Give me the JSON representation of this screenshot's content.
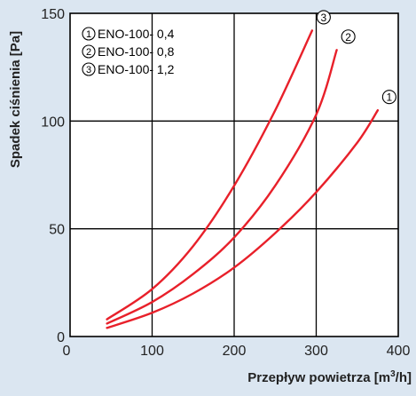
{
  "chart_data": {
    "type": "line",
    "title": "",
    "xlabel_main": "Przepływ  powietrza [m",
    "xlabel_sup": "3",
    "xlabel_tail": "/h]",
    "ylabel": "Spadek  ciśnienia [Pa]",
    "xlim": [
      0,
      400
    ],
    "ylim": [
      0,
      150
    ],
    "x_ticks": [
      "0",
      "100",
      "200",
      "300",
      "400"
    ],
    "y_ticks": [
      "0",
      "50",
      "100",
      "150"
    ],
    "grid": true,
    "legend_position": "top-left",
    "legend": [
      {
        "marker": "1",
        "label": "ENO-100- 0,4"
      },
      {
        "marker": "2",
        "label": "ENO-100- 0,8"
      },
      {
        "marker": "3",
        "label": "ENO-100- 1,2"
      }
    ],
    "series": [
      {
        "marker": "1",
        "color": "#e8202a",
        "x": [
          45,
          100,
          150,
          200,
          250,
          300,
          350,
          375
        ],
        "y": [
          4,
          11,
          20,
          32,
          48,
          67,
          90,
          105
        ]
      },
      {
        "marker": "2",
        "color": "#e8202a",
        "x": [
          45,
          100,
          150,
          200,
          250,
          300,
          325
        ],
        "y": [
          6,
          16,
          29,
          46,
          70,
          103,
          133
        ]
      },
      {
        "marker": "3",
        "color": "#e8202a",
        "x": [
          45,
          100,
          150,
          200,
          250,
          295
        ],
        "y": [
          8,
          22,
          42,
          70,
          105,
          142
        ]
      }
    ]
  }
}
